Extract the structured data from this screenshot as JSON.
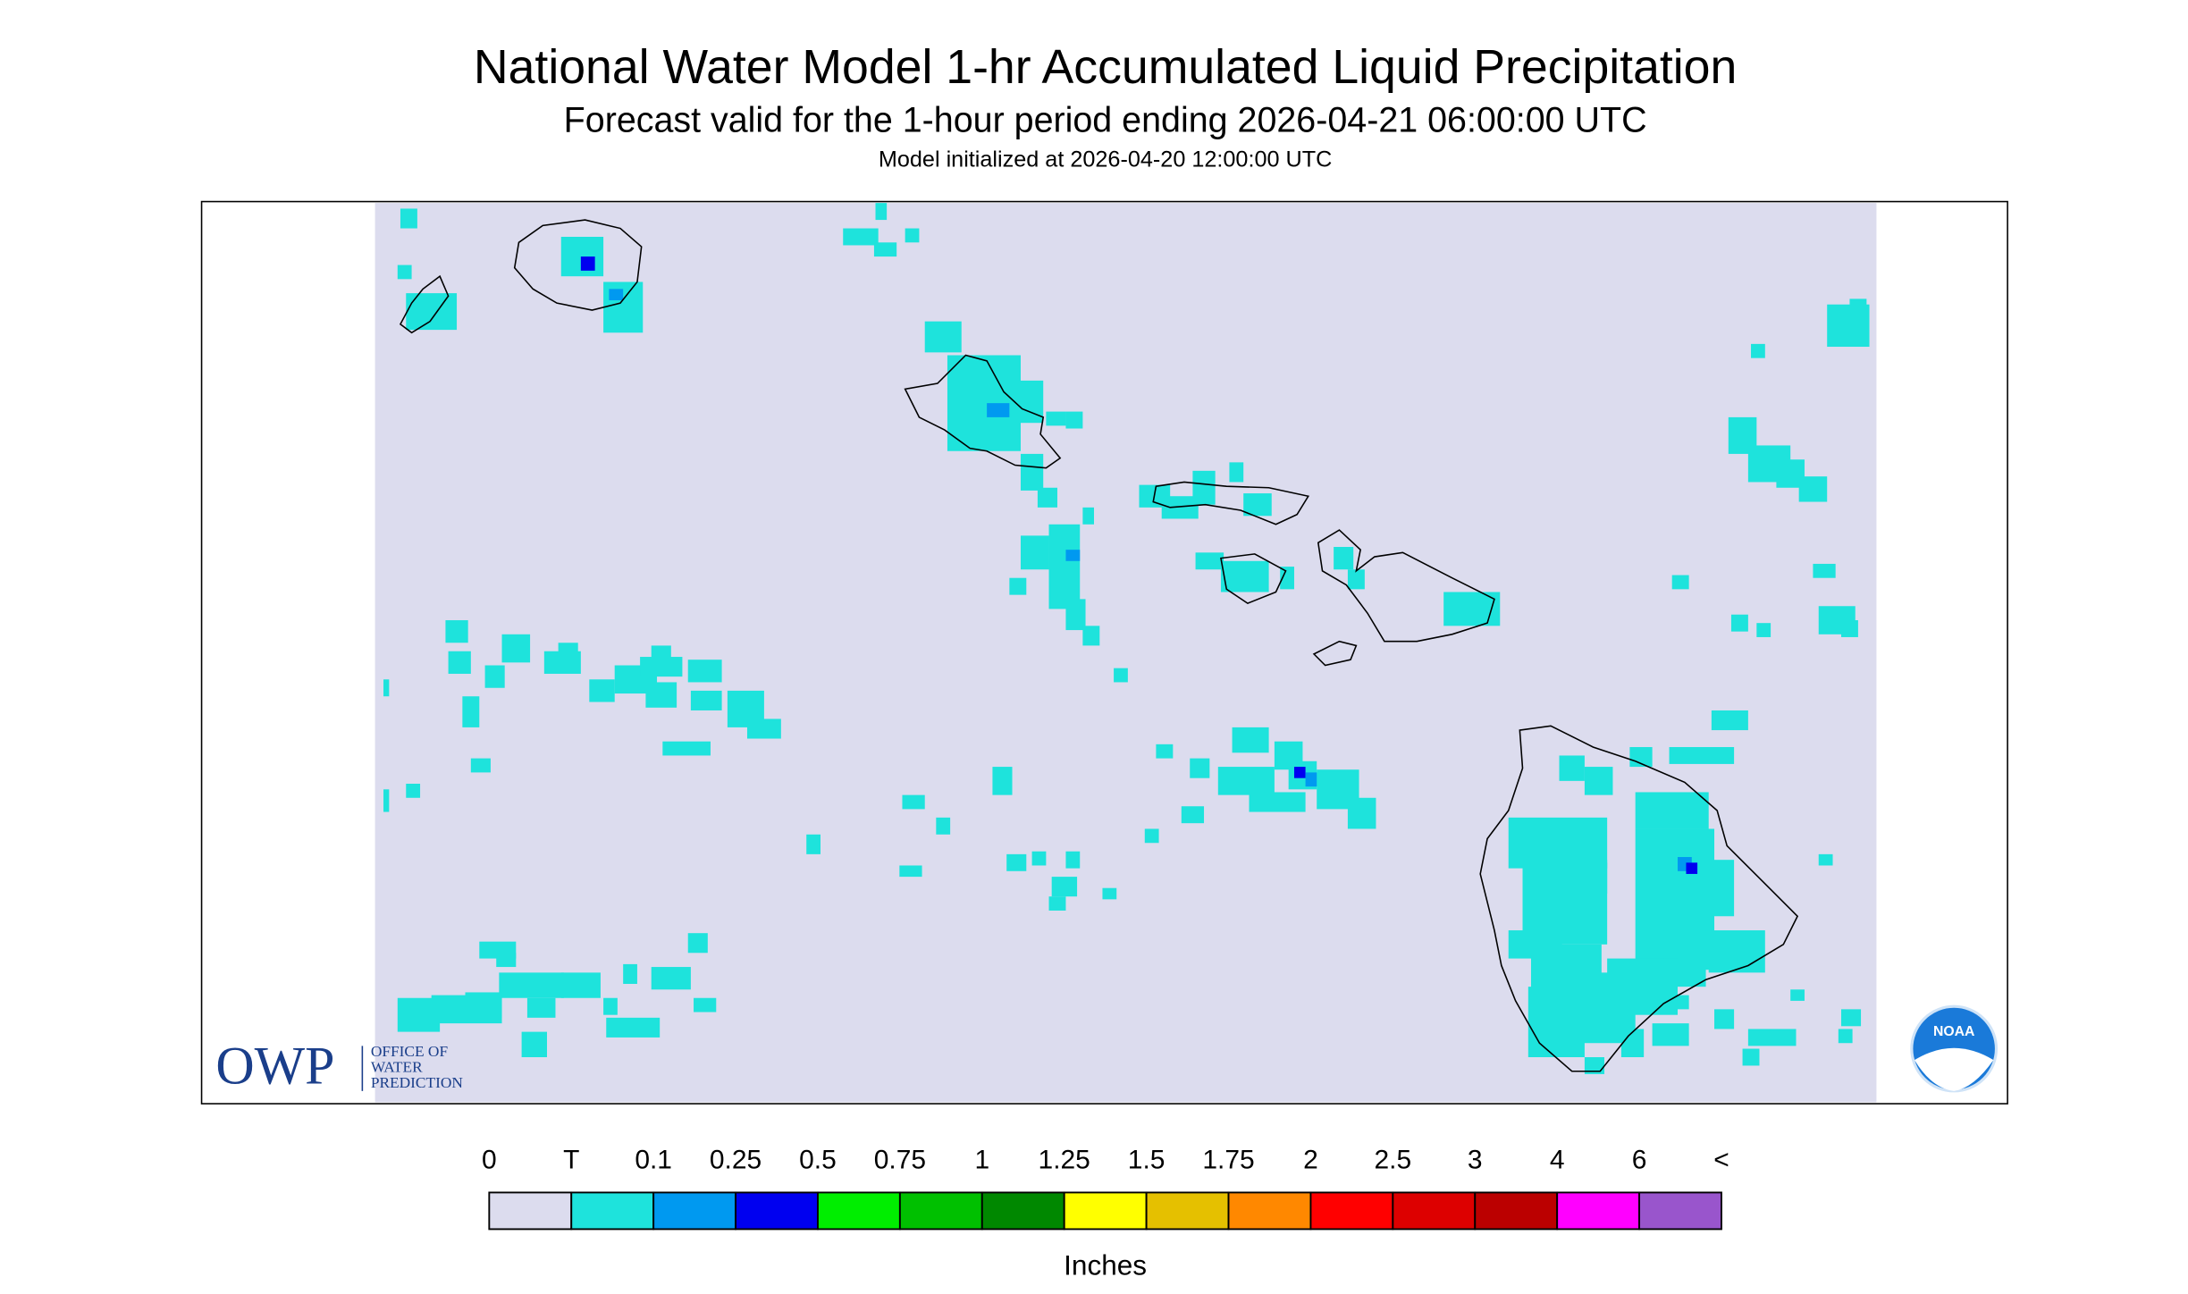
{
  "header": {
    "title": "National Water Model 1-hr Accumulated Liquid Precipitation",
    "subtitle": "Forecast valid for the 1-hour period ending 2026-04-21 06:00:00 UTC",
    "init": "Model initialized at 2026-04-20 12:00:00 UTC"
  },
  "legend": {
    "labels": [
      "0",
      "T",
      "0.1",
      "0.25",
      "0.5",
      "0.75",
      "1",
      "1.25",
      "1.5",
      "1.75",
      "2",
      "2.5",
      "3",
      "4",
      "6",
      "<"
    ],
    "colors": [
      "#dcdcee",
      "#1ee3dc",
      "#0099f0",
      "#0000f0",
      "#00ee00",
      "#00c000",
      "#008800",
      "#ffff00",
      "#e5c000",
      "#ff8800",
      "#ff0000",
      "#dd0000",
      "#bb0000",
      "#ff00ff",
      "#9955cc"
    ],
    "unit": "Inches"
  },
  "logos": {
    "owp": "OWP",
    "owp_name": [
      "OFFICE OF",
      "WATER",
      "PREDICTION"
    ],
    "noaa": "NOAA"
  }
}
